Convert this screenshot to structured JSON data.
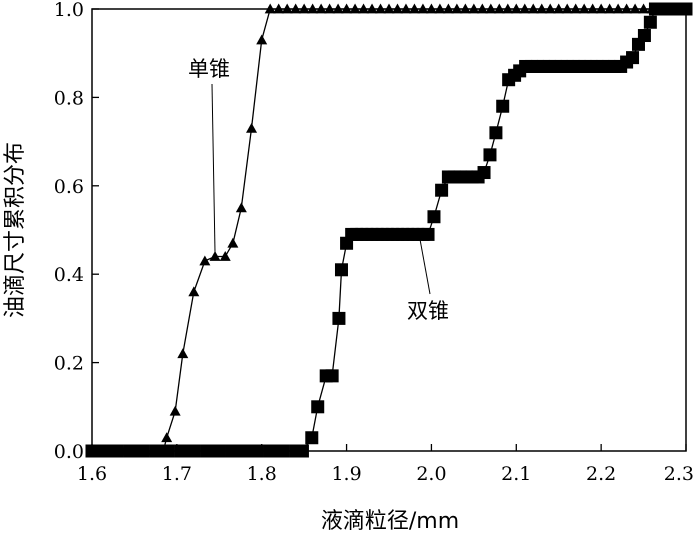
{
  "chart_data": {
    "type": "line",
    "xlabel": "液滴粒径/mm",
    "ylabel": "油滴尺寸累积分布",
    "xlim": [
      1.6,
      2.3
    ],
    "ylim": [
      0.0,
      1.0
    ],
    "xticks": [
      "1.6",
      "1.7",
      "1.8",
      "1.9",
      "2.0",
      "2.1",
      "2.2",
      "2.3"
    ],
    "yticks": [
      "0.0",
      "0.2",
      "0.4",
      "0.6",
      "0.8",
      "1.0"
    ],
    "grid": false,
    "legend": "none",
    "annotations": [
      {
        "text": "单锥",
        "series": 0
      },
      {
        "text": "双锥",
        "series": 1
      }
    ],
    "series": [
      {
        "name": "单锥",
        "marker": "triangle",
        "x": [
          1.6,
          1.612,
          1.624,
          1.636,
          1.648,
          1.66,
          1.672,
          1.684,
          1.688,
          1.698,
          1.707,
          1.72,
          1.733,
          1.745,
          1.757,
          1.766,
          1.776,
          1.788,
          1.8,
          1.81,
          1.82,
          1.83,
          1.84,
          1.85,
          1.86,
          1.87,
          1.88,
          1.89,
          1.9,
          1.91,
          1.92,
          1.93,
          1.94,
          1.95,
          1.96,
          1.97,
          1.98,
          1.99,
          2.0,
          2.01,
          2.02,
          2.03,
          2.04,
          2.05,
          2.06,
          2.07,
          2.08,
          2.09,
          2.1,
          2.11,
          2.12,
          2.13,
          2.14,
          2.15,
          2.16,
          2.17,
          2.18,
          2.19,
          2.2,
          2.21,
          2.22,
          2.23,
          2.24,
          2.25,
          2.26,
          2.27,
          2.28,
          2.29,
          2.3
        ],
        "y": [
          0.0,
          0.0,
          0.0,
          0.0,
          0.0,
          0.0,
          0.0,
          0.0,
          0.03,
          0.09,
          0.22,
          0.36,
          0.43,
          0.44,
          0.44,
          0.47,
          0.55,
          0.73,
          0.93,
          1.0,
          1.0,
          1.0,
          1.0,
          1.0,
          1.0,
          1.0,
          1.0,
          1.0,
          1.0,
          1.0,
          1.0,
          1.0,
          1.0,
          1.0,
          1.0,
          1.0,
          1.0,
          1.0,
          1.0,
          1.0,
          1.0,
          1.0,
          1.0,
          1.0,
          1.0,
          1.0,
          1.0,
          1.0,
          1.0,
          1.0,
          1.0,
          1.0,
          1.0,
          1.0,
          1.0,
          1.0,
          1.0,
          1.0,
          1.0,
          1.0,
          1.0,
          1.0,
          1.0,
          1.0,
          1.0,
          1.0,
          1.0,
          1.0,
          1.0
        ]
      },
      {
        "name": "双锥",
        "marker": "square",
        "x": [
          1.6,
          1.615,
          1.63,
          1.645,
          1.66,
          1.675,
          1.69,
          1.705,
          1.72,
          1.735,
          1.75,
          1.765,
          1.78,
          1.795,
          1.81,
          1.825,
          1.84,
          1.848,
          1.859,
          1.866,
          1.876,
          1.883,
          1.891,
          1.894,
          1.9,
          1.906,
          1.912,
          1.918,
          1.924,
          1.93,
          1.936,
          1.942,
          1.948,
          1.954,
          1.96,
          1.966,
          1.972,
          1.978,
          1.984,
          1.99,
          1.996,
          2.003,
          2.012,
          2.02,
          2.027,
          2.034,
          2.041,
          2.048,
          2.055,
          2.062,
          2.069,
          2.076,
          2.084,
          2.091,
          2.098,
          2.104,
          2.111,
          2.118,
          2.125,
          2.132,
          2.139,
          2.146,
          2.153,
          2.16,
          2.167,
          2.174,
          2.181,
          2.188,
          2.195,
          2.202,
          2.209,
          2.216,
          2.223,
          2.23,
          2.237,
          2.244,
          2.251,
          2.258,
          2.264,
          2.27,
          2.276,
          2.282,
          2.288,
          2.294,
          2.3
        ],
        "y": [
          0.0,
          0.0,
          0.0,
          0.0,
          0.0,
          0.0,
          0.0,
          0.0,
          0.0,
          0.0,
          0.0,
          0.0,
          0.0,
          0.0,
          0.0,
          0.0,
          0.0,
          0.0,
          0.03,
          0.1,
          0.17,
          0.17,
          0.3,
          0.41,
          0.47,
          0.49,
          0.49,
          0.49,
          0.49,
          0.49,
          0.49,
          0.49,
          0.49,
          0.49,
          0.49,
          0.49,
          0.49,
          0.49,
          0.49,
          0.49,
          0.49,
          0.53,
          0.59,
          0.62,
          0.62,
          0.62,
          0.62,
          0.62,
          0.62,
          0.63,
          0.67,
          0.72,
          0.78,
          0.84,
          0.85,
          0.86,
          0.87,
          0.87,
          0.87,
          0.87,
          0.87,
          0.87,
          0.87,
          0.87,
          0.87,
          0.87,
          0.87,
          0.87,
          0.87,
          0.87,
          0.87,
          0.87,
          0.87,
          0.88,
          0.89,
          0.92,
          0.94,
          0.97,
          1.0,
          1.0,
          1.0,
          1.0,
          1.0,
          1.0,
          1.0
        ]
      }
    ]
  }
}
